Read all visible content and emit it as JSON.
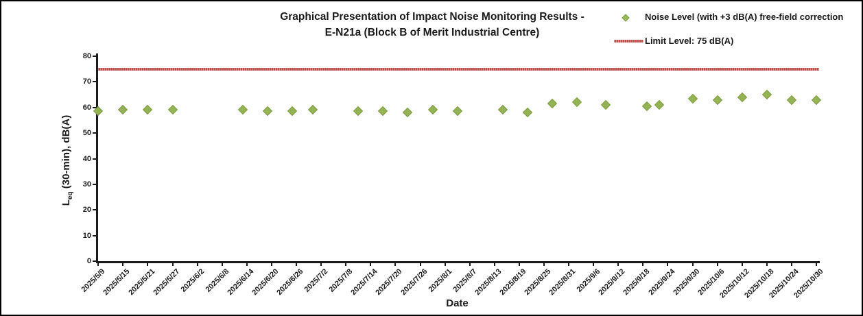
{
  "chart": {
    "title_line1": "Graphical Presentation of Impact Noise Monitoring Results -",
    "title_line2": "E-N21a (Block B of Merit Industrial Centre)",
    "xlabel": "Date",
    "ylabel_prefix": "L",
    "ylabel_sub": "eq",
    "ylabel_suffix": " (30-min), dB(A)"
  },
  "colors": {
    "marker_fill": "#9BBB59",
    "marker_edge": "#7E9B44",
    "limit_line": "#C0504D",
    "axis": "#1a1a1a"
  },
  "chart_data": {
    "type": "scatter",
    "title": "Graphical Presentation of Impact Noise Monitoring Results - E-N21a (Block B of Merit Industrial Centre)",
    "xlabel": "Date",
    "ylabel": "Leq (30-min), dB(A)",
    "ylim": [
      0,
      80
    ],
    "grid": false,
    "legend_position": "top-right",
    "y_ticks": [
      0,
      10,
      20,
      30,
      40,
      50,
      60,
      70,
      80
    ],
    "x_tick_interval_days": 6,
    "x_tick_labels": [
      "2025/5/9",
      "2025/5/15",
      "2025/5/21",
      "2025/5/27",
      "2025/6/2",
      "2025/6/8",
      "2025/6/14",
      "2025/6/20",
      "2025/6/26",
      "2025/7/2",
      "2025/7/8",
      "2025/7/14",
      "2025/7/20",
      "2025/7/26",
      "2025/8/1",
      "2025/8/7",
      "2025/8/13",
      "2025/8/19",
      "2025/8/25",
      "2025/8/31",
      "2025/9/6",
      "2025/9/12",
      "2025/9/18",
      "2025/9/24",
      "2025/9/30",
      "2025/10/6",
      "2025/10/12",
      "2025/10/18",
      "2025/10/24",
      "2025/10/30"
    ],
    "series": [
      {
        "name": "Noise Level (with +3 dB(A) free-field correction",
        "marker": "diamond",
        "color": "#9BBB59",
        "points": [
          {
            "date": "2025/5/9",
            "day": 0,
            "value": 58.5
          },
          {
            "date": "2025/5/15",
            "day": 6,
            "value": 59
          },
          {
            "date": "2025/5/21",
            "day": 12,
            "value": 59
          },
          {
            "date": "2025/5/27",
            "day": 18,
            "value": 59
          },
          {
            "date": "2025/6/13",
            "day": 35,
            "value": 59
          },
          {
            "date": "2025/6/19",
            "day": 41,
            "value": 58.5
          },
          {
            "date": "2025/6/25",
            "day": 47,
            "value": 58.5
          },
          {
            "date": "2025/6/30",
            "day": 52,
            "value": 59
          },
          {
            "date": "2025/7/11",
            "day": 63,
            "value": 58.5
          },
          {
            "date": "2025/7/17",
            "day": 69,
            "value": 58.5
          },
          {
            "date": "2025/7/23",
            "day": 75,
            "value": 58
          },
          {
            "date": "2025/7/29",
            "day": 81,
            "value": 59
          },
          {
            "date": "2025/8/4",
            "day": 87,
            "value": 58.5
          },
          {
            "date": "2025/8/15",
            "day": 98,
            "value": 59
          },
          {
            "date": "2025/8/21",
            "day": 104,
            "value": 58
          },
          {
            "date": "2025/8/27",
            "day": 110,
            "value": 61.5
          },
          {
            "date": "2025/9/2",
            "day": 116,
            "value": 62
          },
          {
            "date": "2025/9/9",
            "day": 123,
            "value": 61
          },
          {
            "date": "2025/9/19",
            "day": 133,
            "value": 60.5
          },
          {
            "date": "2025/9/22",
            "day": 136,
            "value": 61
          },
          {
            "date": "2025/9/30",
            "day": 144,
            "value": 63.5
          },
          {
            "date": "2025/10/6",
            "day": 150,
            "value": 63
          },
          {
            "date": "2025/10/12",
            "day": 156,
            "value": 64
          },
          {
            "date": "2025/10/18",
            "day": 162,
            "value": 65
          },
          {
            "date": "2025/10/24",
            "day": 168,
            "value": 63
          },
          {
            "date": "2025/10/30",
            "day": 174,
            "value": 63
          }
        ]
      }
    ],
    "limit_line": {
      "label": "Limit Level: 75 dB(A)",
      "value": 75,
      "color": "#C0504D"
    }
  }
}
